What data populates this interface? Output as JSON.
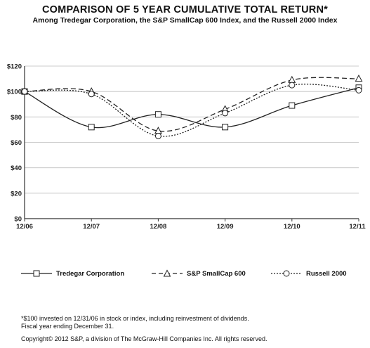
{
  "chart_data": {
    "type": "line",
    "title": "COMPARISON OF 5 YEAR CUMULATIVE TOTAL RETURN*",
    "subtitle": "Among Tredegar Corporation, the S&P SmallCap 600 Index, and the Russell 2000 Index",
    "categories": [
      "12/06",
      "12/07",
      "12/08",
      "12/09",
      "12/10",
      "12/11"
    ],
    "ylim": [
      0,
      120
    ],
    "yticks": [
      "$0",
      "$20",
      "$40",
      "$60",
      "$80",
      "$100",
      "$120"
    ],
    "ytick_values": [
      0,
      20,
      40,
      60,
      80,
      100,
      120
    ],
    "grid": "horizontal",
    "legend_position": "bottom",
    "series": [
      {
        "name": "Tredegar Corporation",
        "values": [
          100,
          72,
          82,
          72,
          89,
          103
        ],
        "marker": "square",
        "dash": "solid",
        "color": "#222222"
      },
      {
        "name": "S&P SmallCap 600",
        "values": [
          100,
          100,
          69,
          86,
          109,
          110
        ],
        "marker": "triangle",
        "dash": "dashed",
        "color": "#222222"
      },
      {
        "name": "Russell 2000",
        "values": [
          100,
          98,
          65,
          83,
          105,
          101
        ],
        "marker": "circle",
        "dash": "dotted",
        "color": "#222222"
      }
    ]
  },
  "footnote": {
    "line1": "*$100 invested on 12/31/06 in stock or index, including reinvestment of dividends.",
    "line2": "Fiscal year ending December 31."
  },
  "copyright": "Copyright© 2012 S&P, a division of The McGraw-Hill Companies Inc. All rights reserved."
}
